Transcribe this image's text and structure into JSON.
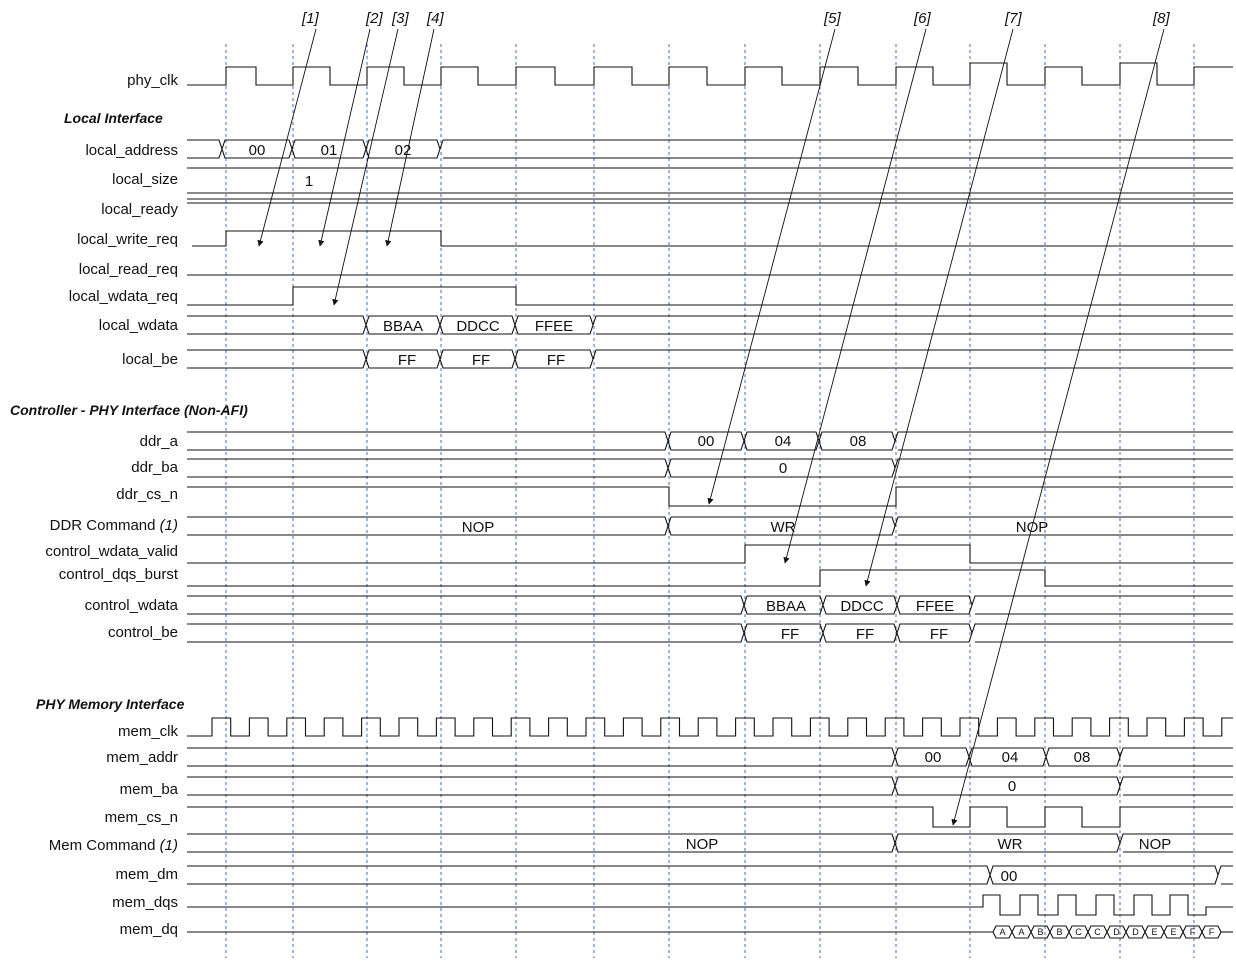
{
  "callouts": [
    "[1]",
    "[2]",
    "[3]",
    "[4]",
    "[5]",
    "[6]",
    "[7]",
    "[8]"
  ],
  "signals": {
    "phy_clk": "phy_clk",
    "local_address": "local_address",
    "local_size": "local_size",
    "local_ready": "local_ready",
    "local_write_req": "local_write_req",
    "local_read_req": "local_read_req",
    "local_wdata_req": "local_wdata_req",
    "local_wdata": "local_wdata",
    "local_be": "local_be",
    "ddr_a": "ddr_a",
    "ddr_ba": "ddr_ba",
    "ddr_cs_n": "ddr_cs_n",
    "ddr_command": "DDR Command",
    "ddr_command_note": "(1)",
    "control_wdata_valid": "control_wdata_valid",
    "control_dqs_burst": "control_dqs_burst",
    "control_wdata": "control_wdata",
    "control_be": "control_be",
    "mem_clk": "mem_clk",
    "mem_addr": "mem_addr",
    "mem_ba": "mem_ba",
    "mem_cs_n": "mem_cs_n",
    "mem_command": "Mem Command",
    "mem_command_note": "(1)",
    "mem_dm": "mem_dm",
    "mem_dqs": "mem_dqs",
    "mem_dq": "mem_dq"
  },
  "sections": {
    "local": "Local Interface",
    "controller": "Controller - PHY Interface (Non-AFI)",
    "phy": "PHY Memory Interface"
  },
  "values": {
    "local_address": [
      "00",
      "01",
      "02"
    ],
    "local_size": "1",
    "local_wdata": [
      "BBAA",
      "DDCC",
      "FFEE"
    ],
    "local_be": [
      "FF",
      "FF",
      "FF"
    ],
    "ddr_a": [
      "00",
      "04",
      "08"
    ],
    "ddr_ba": "0",
    "ddr_command": [
      "NOP",
      "WR",
      "NOP"
    ],
    "control_wdata": [
      "BBAA",
      "DDCC",
      "FFEE"
    ],
    "control_be": [
      "FF",
      "FF",
      "FF"
    ],
    "mem_addr": [
      "00",
      "04",
      "08"
    ],
    "mem_ba": "0",
    "mem_command": [
      "NOP",
      "WR",
      "NOP"
    ],
    "mem_dm": "00",
    "mem_dq": [
      "A",
      "A",
      "B",
      "B",
      "C",
      "C",
      "D",
      "D",
      "E",
      "E",
      "F",
      "F"
    ]
  }
}
